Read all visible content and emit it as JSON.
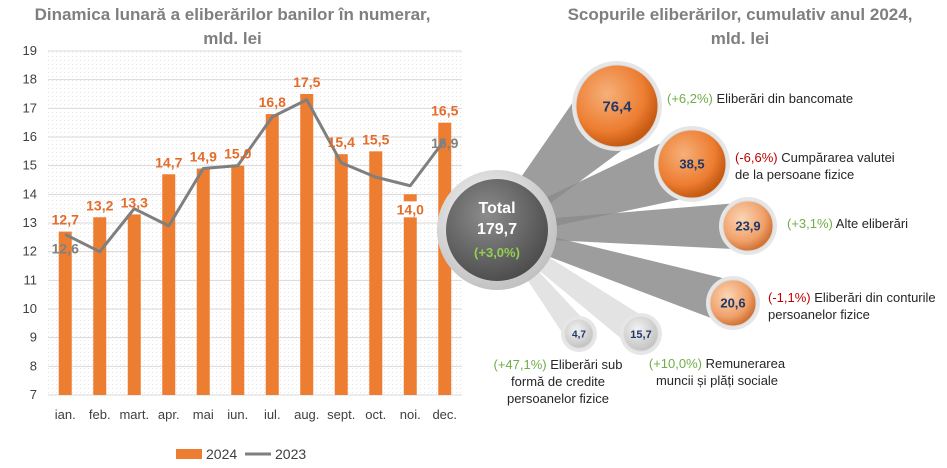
{
  "chart_data": [
    {
      "type": "bar",
      "title": "Dinamica lunară a eliberărilor banilor în numerar,\nmld. lei",
      "categories": [
        "ian.",
        "feb.",
        "mart.",
        "apr.",
        "mai",
        "iun.",
        "iul.",
        "aug.",
        "sept.",
        "oct.",
        "noi.",
        "dec."
      ],
      "series": [
        {
          "name": "2024",
          "type": "bar",
          "color": "#ed7d31",
          "values": [
            12.7,
            13.2,
            13.3,
            14.7,
            14.9,
            15.0,
            16.8,
            17.5,
            15.4,
            15.5,
            14.0,
            16.5
          ],
          "labels": [
            "12,7",
            "13,2",
            "13,3",
            "14,7",
            "14,9",
            "15,0",
            "16,8",
            "17,5",
            "15,4",
            "15,5",
            "14,0",
            "16,5"
          ]
        },
        {
          "name": "2023",
          "type": "line",
          "color": "#7f7f7f",
          "values": [
            12.6,
            12.0,
            13.5,
            12.9,
            14.9,
            15.0,
            16.7,
            17.3,
            15.1,
            14.6,
            14.3,
            15.9
          ],
          "labels": [
            "12,6",
            "",
            "",
            "",
            "",
            "",
            "",
            "",
            "",
            "",
            "",
            "15,9"
          ]
        }
      ],
      "ylim": [
        7,
        19
      ],
      "yticks": [
        "7",
        "8",
        "9",
        "10",
        "11",
        "12",
        "13",
        "14",
        "15",
        "16",
        "17",
        "18",
        "19"
      ],
      "grid": true,
      "legend": "bottom"
    },
    {
      "type": "bubble",
      "title": "Scopurile eliberărilor, cumulativ anul 2024,\nmld. lei",
      "total": {
        "label": "Total",
        "value": "179,7",
        "change": "(+3,0%)",
        "change_color": "#92d050"
      },
      "items": [
        {
          "value": "76,4",
          "change": "(+6,2%)",
          "lines": [
            "Eliberări din bancomate"
          ],
          "trend": "up"
        },
        {
          "value": "38,5",
          "change": "(-6,6%)",
          "lines": [
            "Cumpărarea valutei",
            "de la persoane fizice"
          ],
          "trend": "down"
        },
        {
          "value": "23,9",
          "change": "(+3,1%)",
          "lines": [
            "Alte eliberări"
          ],
          "trend": "up"
        },
        {
          "value": "20,6",
          "change": "(-1,1%)",
          "lines": [
            "Eliberări din conturile",
            "persoanelor fizice"
          ],
          "trend": "down"
        },
        {
          "value": "15,7",
          "change": "(+10,0%)",
          "lines": [
            "Remunerarea",
            "muncii și plăți sociale"
          ],
          "trend": "up"
        },
        {
          "value": "4,7",
          "change": "(+47,1%)",
          "lines": [
            "Eliberări sub",
            "formă de credite",
            "persoanelor fizice"
          ],
          "trend": "up"
        }
      ],
      "colors": {
        "bubble": "#ed7d31",
        "total": "#595959",
        "positive": "#70ad47",
        "negative": "#c00000"
      }
    }
  ]
}
